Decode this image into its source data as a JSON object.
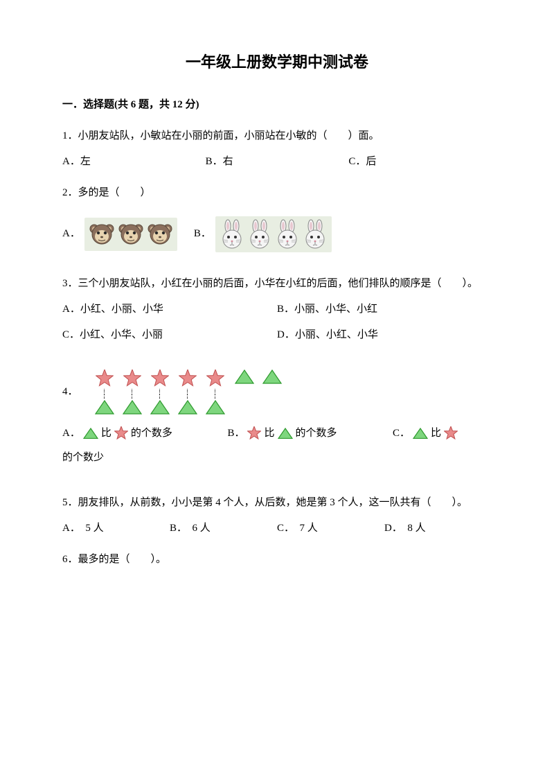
{
  "title": "一年级上册数学期中测试卷",
  "section1": {
    "header": "一．选择题(共 6 题，共 12 分)",
    "q1": {
      "text": "1．小朋友站队，小敏站在小丽的前面，小丽站在小敏的（　　）面。",
      "a": "A．左",
      "b": "B．右",
      "c": "C．后"
    },
    "q2": {
      "text": "2．多的是（　　）",
      "a": "A．",
      "b": "B．",
      "monkey_count": 3,
      "rabbit_count": 4,
      "img_bg": "#e8eee2"
    },
    "q3": {
      "text": "3．三个小朋友站队，小红在小丽的后面，小华在小红的后面，他们排队的顺序是（　　）。",
      "a": "A．小红、小丽、小华",
      "b": "B．小丽、小华、小红",
      "c": "C．小红、小华、小丽",
      "d": "D．小丽、小红、小华"
    },
    "q4": {
      "label": "4．",
      "diagram": {
        "stars": 5,
        "triangles": 7,
        "paired": 5
      },
      "optA_pre": "A．",
      "optA_mid": "比",
      "optA_post": "的个数多",
      "optB_pre": "B．",
      "optB_mid": "比",
      "optB_post": "的个数多",
      "optC_pre": "C．",
      "optC_mid": "比",
      "optC_trail": "的个数少",
      "colors": {
        "star_fill": "#e98a8a",
        "star_stroke": "#c05050",
        "tri_fill": "#7ed67e",
        "tri_stroke": "#2e9a2e"
      }
    },
    "q5": {
      "text": "5．朋友排队，从前数，小小是第 4 个人，从后数，她是第 3 个人，这一队共有（　　）。",
      "a": "A．　5 人",
      "b": "B．　6 人",
      "c": "C．　7 人",
      "d": "D．　8 人"
    },
    "q6": {
      "text": "6．最多的是（　　）。"
    }
  }
}
